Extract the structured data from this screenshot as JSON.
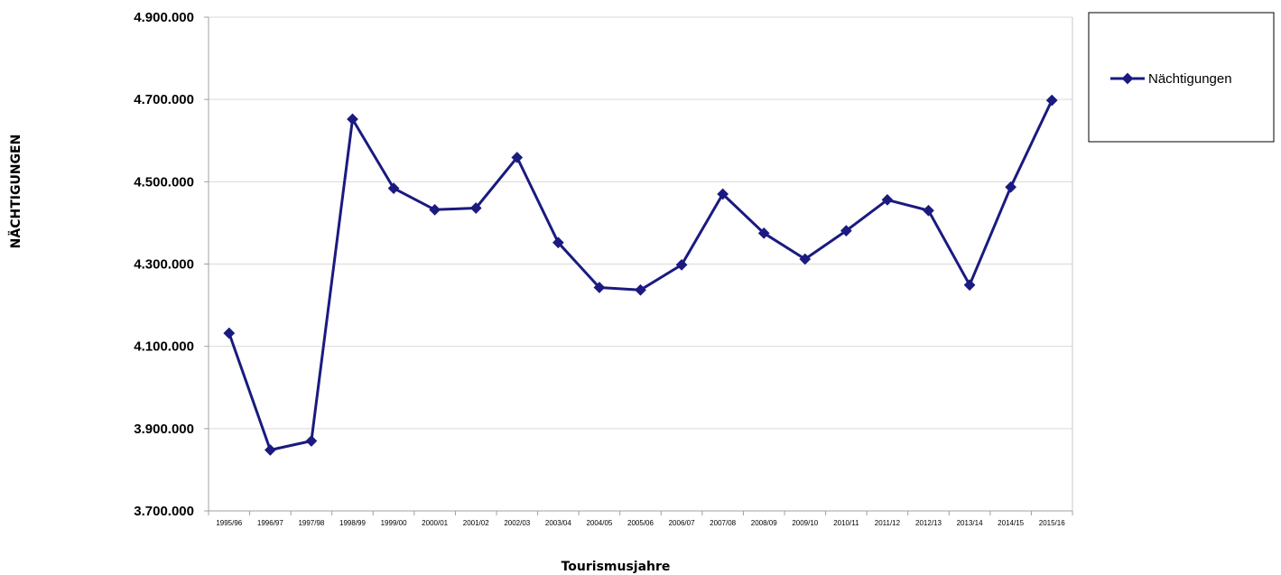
{
  "chart_data": {
    "type": "line",
    "title": "",
    "xlabel": "Tourismusjahre",
    "ylabel": "NÄCHTIGUNGEN",
    "ylim": [
      3700000,
      4900000
    ],
    "y_ticks": [
      3700000,
      3900000,
      4100000,
      4300000,
      4500000,
      4700000,
      4900000
    ],
    "y_tick_labels": [
      "3.700.000",
      "3.900.000",
      "4.100.000",
      "4.300.000",
      "4.500.000",
      "4.700.000",
      "4.900.000"
    ],
    "grid": true,
    "legend_position": "top-right",
    "categories": [
      "1995/96",
      "1996/97",
      "1997/98",
      "1998/99",
      "1999/00",
      "2000/01",
      "2001/02",
      "2002/03",
      "2003/04",
      "2004/05",
      "2005/06",
      "2006/07",
      "2007/08",
      "2008/09",
      "2009/10",
      "2010/11",
      "2011/12",
      "2012/13",
      "2013/14",
      "2014/15",
      "2015/16"
    ],
    "series": [
      {
        "name": "Nächtigungen",
        "color": "#1a1a80",
        "marker": "diamond",
        "values": [
          4132000,
          3848000,
          3870000,
          4652000,
          4484000,
          4432000,
          4436000,
          4559000,
          4352000,
          4243000,
          4237000,
          4298000,
          4470000,
          4375000,
          4312000,
          4381000,
          4456000,
          4430000,
          4249000,
          4487000,
          4698000
        ]
      }
    ]
  }
}
